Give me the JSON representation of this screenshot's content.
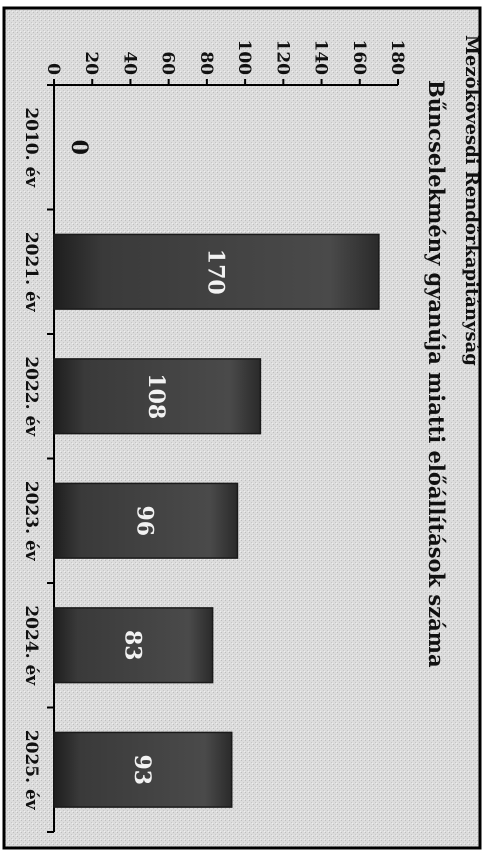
{
  "page": {
    "header_text": "Mezőkövesdi Rendőrkapitányság"
  },
  "chart_data": {
    "type": "bar",
    "orientation": "rotated-90-clockwise",
    "title": "Bűncselekmény gyanúja miatti előállítások száma",
    "categories": [
      "2010. év",
      "2021. év",
      "2022. év",
      "2023. év",
      "2024. év",
      "2025. év"
    ],
    "values": [
      0,
      170,
      108,
      96,
      83,
      93
    ],
    "data_labels": [
      "0",
      "170",
      "108",
      "96",
      "83",
      "93"
    ],
    "xlabel": "",
    "ylabel": "",
    "ylim": [
      0,
      180
    ],
    "yticks": [
      0,
      20,
      40,
      60,
      80,
      100,
      120,
      140,
      160,
      180
    ],
    "grid": false,
    "legend": "none",
    "colors": {
      "bar": "#3b3b3b",
      "bar_edge": "#1a1a1a",
      "data_label": "#f2f2f2",
      "background": "#d9d9d9",
      "axis": "#000000"
    }
  }
}
